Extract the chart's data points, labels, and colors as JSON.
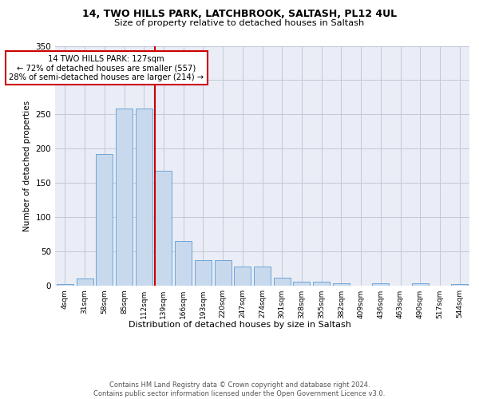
{
  "title_line1": "14, TWO HILLS PARK, LATCHBROOK, SALTASH, PL12 4UL",
  "title_line2": "Size of property relative to detached houses in Saltash",
  "xlabel": "Distribution of detached houses by size in Saltash",
  "ylabel": "Number of detached properties",
  "bar_labels": [
    "4sqm",
    "31sqm",
    "58sqm",
    "85sqm",
    "112sqm",
    "139sqm",
    "166sqm",
    "193sqm",
    "220sqm",
    "247sqm",
    "274sqm",
    "301sqm",
    "328sqm",
    "355sqm",
    "382sqm",
    "409sqm",
    "436sqm",
    "463sqm",
    "490sqm",
    "517sqm",
    "544sqm"
  ],
  "bar_values": [
    2,
    10,
    192,
    258,
    258,
    168,
    65,
    37,
    37,
    28,
    28,
    11,
    5,
    5,
    3,
    0,
    3,
    0,
    3,
    0,
    2
  ],
  "bar_color": "#c9d9ed",
  "bar_edgecolor": "#5b9bd5",
  "vline_color": "#cc0000",
  "vline_x": 4.556,
  "annotation_text": "14 TWO HILLS PARK: 127sqm\n← 72% of detached houses are smaller (557)\n28% of semi-detached houses are larger (214) →",
  "ylim_max": 350,
  "yticks": [
    0,
    50,
    100,
    150,
    200,
    250,
    300,
    350
  ],
  "grid_color": "#c0c8d8",
  "bg_color": "#eaedf5",
  "footer": "Contains HM Land Registry data © Crown copyright and database right 2024.\nContains public sector information licensed under the Open Government Licence v3.0."
}
